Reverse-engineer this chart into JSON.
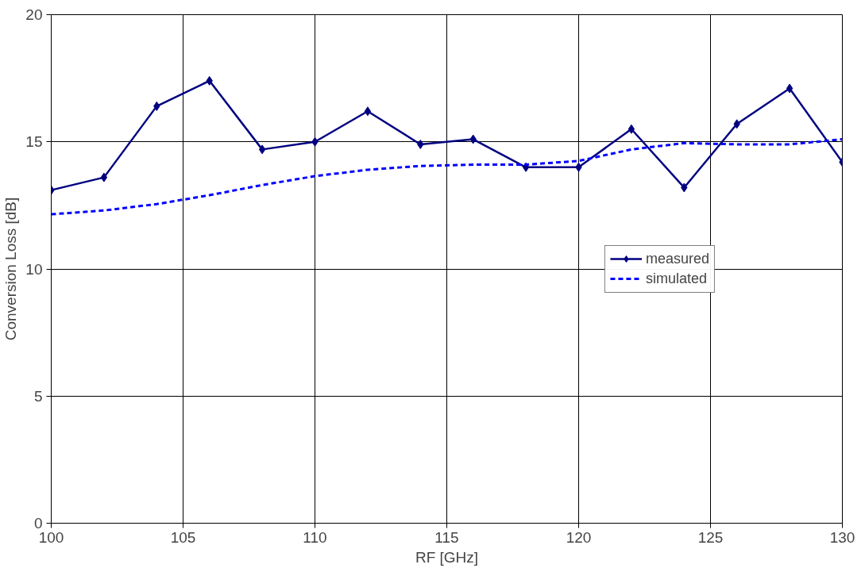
{
  "chart_data": {
    "type": "line",
    "xlabel": "RF [GHz]",
    "ylabel": "Conversion Loss [dB]",
    "xlim": [
      100,
      130
    ],
    "ylim": [
      0,
      20
    ],
    "xticks": [
      100,
      105,
      110,
      115,
      120,
      125,
      130
    ],
    "yticks": [
      0,
      5,
      10,
      15,
      20
    ],
    "grid": true,
    "legend": "center right",
    "series": [
      {
        "name": "measured",
        "color": "#000080",
        "marker": "diamond",
        "line_style": "solid",
        "x": [
          100,
          102,
          104,
          106,
          108,
          110,
          112,
          114,
          116,
          118,
          120,
          122,
          124,
          126,
          128,
          130
        ],
        "values": [
          13.1,
          13.6,
          16.4,
          17.4,
          14.7,
          15.0,
          16.2,
          14.9,
          15.1,
          14.0,
          14.0,
          15.5,
          13.2,
          15.7,
          17.1,
          14.2
        ]
      },
      {
        "name": "simulated",
        "color": "#0000ff",
        "marker": "none",
        "line_style": "dashed",
        "x": [
          100,
          102,
          104,
          106,
          108,
          110,
          112,
          114,
          116,
          118,
          120,
          122,
          124,
          126,
          128,
          130
        ],
        "values": [
          12.15,
          12.3,
          12.55,
          12.9,
          13.3,
          13.65,
          13.9,
          14.05,
          14.1,
          14.1,
          14.25,
          14.7,
          14.95,
          14.9,
          14.9,
          15.1
        ]
      }
    ]
  }
}
